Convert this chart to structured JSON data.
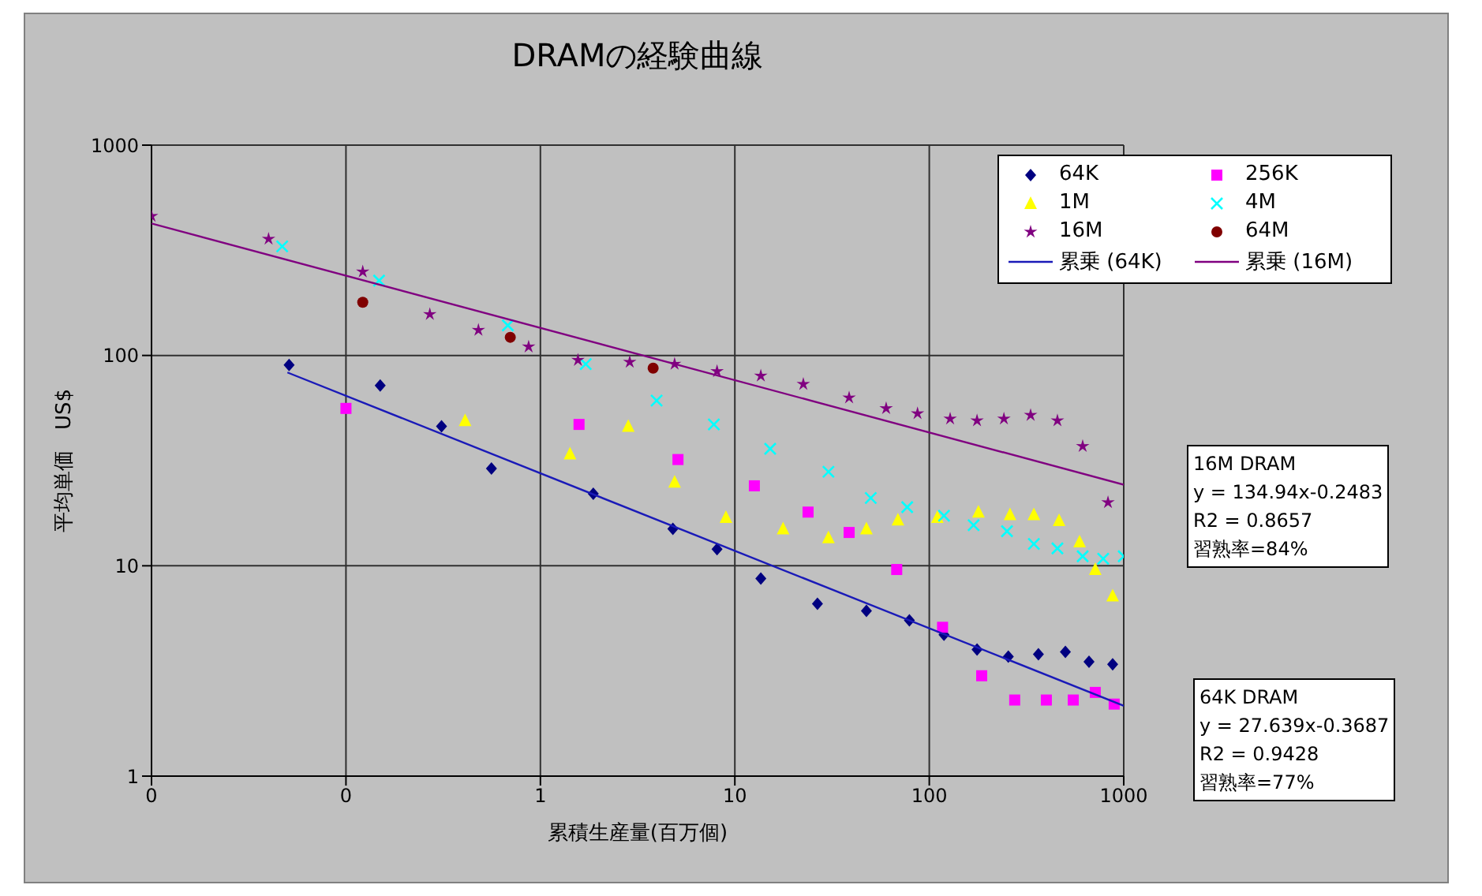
{
  "chart_data": {
    "type": "scatter",
    "title": "DRAMの経験曲線",
    "xlabel": "累積生産量(百万個)",
    "ylabel": "平均単価　US$",
    "log": "xy",
    "grid": true,
    "legend": "top right",
    "xlim": [
      0.01,
      1000
    ],
    "xticks": [
      {
        "value": 0.01,
        "label": "0"
      },
      {
        "value": 0.1,
        "label": "0"
      },
      1,
      10,
      100,
      1000
    ],
    "ylim": [
      1,
      1000
    ],
    "yticks": [
      1,
      10,
      100,
      1000
    ],
    "series": [
      {
        "name": "64K",
        "color": "#000080",
        "marker": "diamond",
        "x": [
          0.051,
          0.15,
          0.31,
          0.56,
          1.87,
          4.8,
          8.1,
          13.6,
          26.6,
          47.5,
          79,
          119,
          176,
          255,
          364,
          501,
          663,
          877
        ],
        "values": [
          90,
          72,
          46,
          29,
          22,
          15,
          12,
          8.7,
          6.6,
          6.1,
          5.5,
          4.7,
          4.0,
          3.7,
          3.8,
          3.9,
          3.5,
          3.4
        ]
      },
      {
        "name": "256K",
        "color": "#ff00ff",
        "marker": "square",
        "x": [
          0.1,
          1.58,
          5.1,
          12.6,
          23.8,
          38.7,
          68,
          117,
          186,
          275,
          400,
          550,
          714,
          893
        ],
        "values": [
          56,
          47,
          32,
          24,
          18,
          14.4,
          9.6,
          5.1,
          3.0,
          2.3,
          2.3,
          2.3,
          2.5,
          2.2
        ]
      },
      {
        "name": "1M",
        "color": "#ffff00",
        "marker": "triangle",
        "x": [
          0.41,
          1.42,
          2.83,
          4.9,
          9.0,
          17.7,
          30.3,
          47.5,
          69,
          110,
          179,
          260,
          345,
          465,
          593,
          714,
          877
        ],
        "values": [
          49,
          34,
          46,
          25,
          17,
          15,
          13.6,
          15,
          16.5,
          17,
          18,
          17.5,
          17.5,
          16.4,
          13,
          9.6,
          7.2
        ]
      },
      {
        "name": "4M",
        "color": "#00ffff",
        "marker": "cross",
        "x": [
          0.047,
          0.148,
          0.68,
          1.71,
          3.96,
          7.8,
          15.2,
          30.3,
          50,
          77,
          119,
          169,
          251,
          345,
          456,
          615,
          784,
          1000
        ],
        "values": [
          330,
          227,
          139,
          91,
          61,
          47,
          36,
          28,
          21,
          19,
          17.3,
          15.6,
          14.6,
          12.7,
          12.1,
          11.1,
          10.8,
          11.1
        ]
      },
      {
        "name": "16M",
        "color": "#800080",
        "marker": "star",
        "x": [
          0.01,
          0.04,
          0.122,
          0.27,
          0.48,
          0.87,
          1.56,
          2.88,
          4.9,
          8.1,
          13.6,
          22.5,
          38.7,
          60,
          87,
          128,
          176,
          242,
          332,
          456,
          615,
          830
        ],
        "values": [
          460,
          358,
          250,
          157,
          132,
          110,
          95,
          93,
          91,
          84,
          80,
          73,
          63,
          56,
          53,
          50,
          49,
          50,
          52,
          49,
          37,
          20
        ]
      },
      {
        "name": "64M",
        "color": "#800000",
        "marker": "circle",
        "x": [
          0.122,
          0.7,
          3.8
        ],
        "values": [
          179,
          122,
          87
        ]
      },
      {
        "name": "累乗 (64K)",
        "type": "line",
        "color": "#1a1ab8",
        "marker": "none",
        "line_style": "solid",
        "x": [
          0.05,
          1000
        ],
        "values": [
          83,
          2.16
        ]
      },
      {
        "name": "累乗 (16M)",
        "type": "line",
        "color": "#800080",
        "marker": "none",
        "line_style": "solid",
        "x": [
          0.01,
          1000
        ],
        "values": [
          424,
          24.3
        ]
      }
    ],
    "annotations": [
      "16M DRAM\ny = 134.94x-0.2483\nR2 = 0.8657\n習熟率=84%",
      "64K DRAM\ny = 27.639x-0.3687\nR2 = 0.9428\n習熟率=77%"
    ]
  }
}
